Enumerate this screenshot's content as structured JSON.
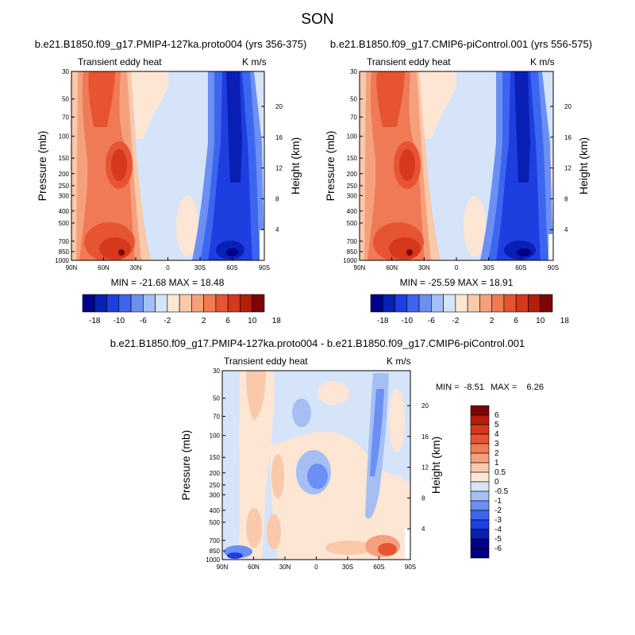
{
  "figure_title": "SON",
  "colors": {
    "blue_6": "#00008b",
    "blue_5": "#0a1fb4",
    "blue_4": "#1f3ee0",
    "blue_3": "#3d66f0",
    "blue_2": "#6b8ff2",
    "blue_1": "#a5bff5",
    "blue_0": "#d6e4fa",
    "red_0": "#fde6d4",
    "red_1": "#f9c9aa",
    "red_2": "#f5a07d",
    "red_3": "#f07a55",
    "red_4": "#e65432",
    "red_5": "#d5381c",
    "red_6": "#b51c0c",
    "red_7": "#7d0505"
  },
  "chart_data": [
    {
      "type": "contour",
      "title": "b.e21.B1850.f09_g17.PMIP4-127ka.proto004 (yrs 356-375)",
      "left_string": "Transient eddy heat",
      "right_string": "K m/s",
      "xlabel": "",
      "ylabel": "Pressure (mb)",
      "y2label": "Height (km)",
      "x_ticks": [
        "90N",
        "60N",
        "30N",
        "0",
        "30S",
        "60S",
        "90S"
      ],
      "y_ticks": [
        "30",
        "50",
        "70",
        "100",
        "150",
        "200",
        "250",
        "300",
        "400",
        "500",
        "700",
        "850",
        "1000"
      ],
      "y2_ticks": [
        "20",
        "16",
        "12",
        "8",
        "4"
      ],
      "stats": "MIN = -21.68   MAX = 18.48",
      "min": -21.68,
      "max": 18.48,
      "colorbar": {
        "orientation": "horizontal",
        "labels": [
          "-18",
          "-10",
          "-6",
          "-2",
          "2",
          "6",
          "10",
          "18"
        ]
      }
    },
    {
      "type": "contour",
      "title": "b.e21.B1850.f09_g17.CMIP6-piControl.001 (yrs 556-575)",
      "left_string": "Transient eddy heat",
      "right_string": "K m/s",
      "xlabel": "",
      "ylabel": "Pressure (mb)",
      "y2label": "Height (km)",
      "x_ticks": [
        "90N",
        "60N",
        "30N",
        "0",
        "30S",
        "60S",
        "90S"
      ],
      "y_ticks": [
        "30",
        "50",
        "70",
        "100",
        "150",
        "200",
        "250",
        "300",
        "400",
        "500",
        "700",
        "850",
        "1000"
      ],
      "y2_ticks": [
        "20",
        "16",
        "12",
        "8",
        "4"
      ],
      "stats": "MIN = -25.59   MAX = 18.91",
      "min": -25.59,
      "max": 18.91,
      "colorbar": {
        "orientation": "horizontal",
        "labels": [
          "-18",
          "-10",
          "-6",
          "-2",
          "2",
          "6",
          "10",
          "18"
        ]
      }
    },
    {
      "type": "contour",
      "title": "b.e21.B1850.f09_g17.PMIP4-127ka.proto004 - b.e21.B1850.f09_g17.CMIP6-piControl.001",
      "left_string": "Transient eddy heat",
      "right_string": "K m/s",
      "xlabel": "",
      "ylabel": "Pressure (mb)",
      "y2label": "Height (km)",
      "x_ticks": [
        "90N",
        "60N",
        "30N",
        "0",
        "30S",
        "60S",
        "90S"
      ],
      "y_ticks": [
        "30",
        "50",
        "70",
        "100",
        "150",
        "200",
        "250",
        "300",
        "400",
        "500",
        "700",
        "850",
        "1000"
      ],
      "y2_ticks": [
        "20",
        "16",
        "12",
        "8",
        "4"
      ],
      "stats_min": "MIN =  -8.51",
      "stats_max": "MAX =    6.26",
      "min": -8.51,
      "max": 6.26,
      "colorbar": {
        "orientation": "vertical",
        "labels": [
          "6",
          "5",
          "4",
          "3",
          "2",
          "1",
          "0.5",
          "0",
          "-0.5",
          "-1",
          "-2",
          "-3",
          "-4",
          "-5",
          "-6"
        ]
      }
    }
  ]
}
